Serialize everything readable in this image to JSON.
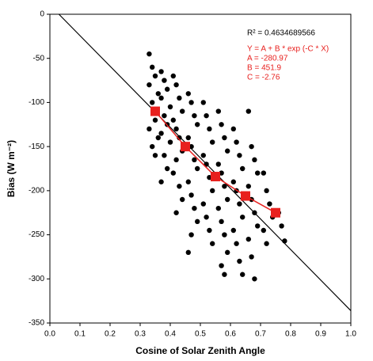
{
  "chart_data": {
    "type": "scatter",
    "x_label": "Cosine of Solar Zenith Angle",
    "y_label": "Bias (W m⁻²)",
    "annotations": [
      "R² = 0.4634689566"
    ],
    "fit_annotations": [
      "Y = A + B * exp (-C * X)",
      "A = -280.97",
      "B = 451.9",
      "C = -2.76"
    ],
    "xlim": [
      0,
      1.0
    ],
    "ylim": [
      -350,
      0
    ],
    "xticks": [
      {
        "value": 0,
        "label": "0.0"
      },
      0.1,
      0.2,
      0.3,
      0.4,
      0.5,
      0.6,
      0.7,
      0.8,
      0.9,
      {
        "value": 1,
        "label": "1.0"
      }
    ],
    "yticks": [
      0,
      -50,
      -100,
      -150,
      -200,
      -250,
      -300,
      -350
    ],
    "series": [
      {
        "color": "#000000",
        "x": [
          0.33,
          0.34,
          0.35,
          0.33,
          0.36,
          0.34,
          0.35,
          0.33,
          0.36,
          0.34,
          0.35,
          0.37,
          0.38,
          0.39,
          0.37,
          0.4,
          0.38,
          0.39,
          0.37,
          0.4,
          0.38,
          0.39,
          0.37,
          0.41,
          0.42,
          0.43,
          0.44,
          0.41,
          0.42,
          0.43,
          0.44,
          0.42,
          0.41,
          0.43,
          0.44,
          0.42,
          0.46,
          0.47,
          0.48,
          0.49,
          0.46,
          0.47,
          0.48,
          0.49,
          0.46,
          0.47,
          0.48,
          0.49,
          0.47,
          0.46,
          0.51,
          0.52,
          0.53,
          0.54,
          0.51,
          0.52,
          0.53,
          0.54,
          0.51,
          0.52,
          0.53,
          0.54,
          0.56,
          0.57,
          0.58,
          0.59,
          0.56,
          0.57,
          0.58,
          0.59,
          0.56,
          0.57,
          0.58,
          0.59,
          0.57,
          0.58,
          0.61,
          0.62,
          0.63,
          0.64,
          0.61,
          0.62,
          0.63,
          0.64,
          0.61,
          0.62,
          0.63,
          0.64,
          0.66,
          0.67,
          0.68,
          0.69,
          0.66,
          0.67,
          0.68,
          0.69,
          0.66,
          0.67,
          0.68,
          0.71,
          0.72,
          0.73,
          0.74,
          0.71,
          0.72,
          0.76,
          0.77,
          0.78
        ],
        "values": [
          -45,
          -60,
          -70,
          -80,
          -90,
          -100,
          -120,
          -130,
          -140,
          -150,
          -160,
          -65,
          -75,
          -85,
          -95,
          -105,
          -115,
          -125,
          -135,
          -145,
          -160,
          -175,
          -190,
          -70,
          -80,
          -95,
          -110,
          -120,
          -130,
          -140,
          -155,
          -165,
          -180,
          -195,
          -210,
          -225,
          -90,
          -100,
          -115,
          -125,
          -140,
          -150,
          -165,
          -175,
          -190,
          -205,
          -220,
          -235,
          -250,
          -270,
          -100,
          -115,
          -130,
          -145,
          -160,
          -170,
          -185,
          -200,
          -215,
          -230,
          -245,
          -260,
          -110,
          -125,
          -140,
          -155,
          -170,
          -180,
          -195,
          -210,
          -220,
          -235,
          -250,
          -270,
          -285,
          -295,
          -130,
          -145,
          -160,
          -175,
          -190,
          -200,
          -215,
          -230,
          -245,
          -260,
          -280,
          -295,
          -110,
          -150,
          -165,
          -180,
          -195,
          -210,
          -225,
          -240,
          -255,
          -275,
          -300,
          -180,
          -200,
          -215,
          -230,
          -245,
          -260,
          -225,
          -240,
          -257
        ]
      },
      {
        "type": "line",
        "color": "#000000",
        "x": [
          0.03,
          1.0
        ],
        "values": [
          0,
          -336
        ]
      },
      {
        "type": "line-marker",
        "color": "#e8201e",
        "x": [
          0.35,
          0.45,
          0.55,
          0.65,
          0.75
        ],
        "values": [
          -110,
          -150,
          -184,
          -206,
          -225
        ]
      }
    ]
  }
}
